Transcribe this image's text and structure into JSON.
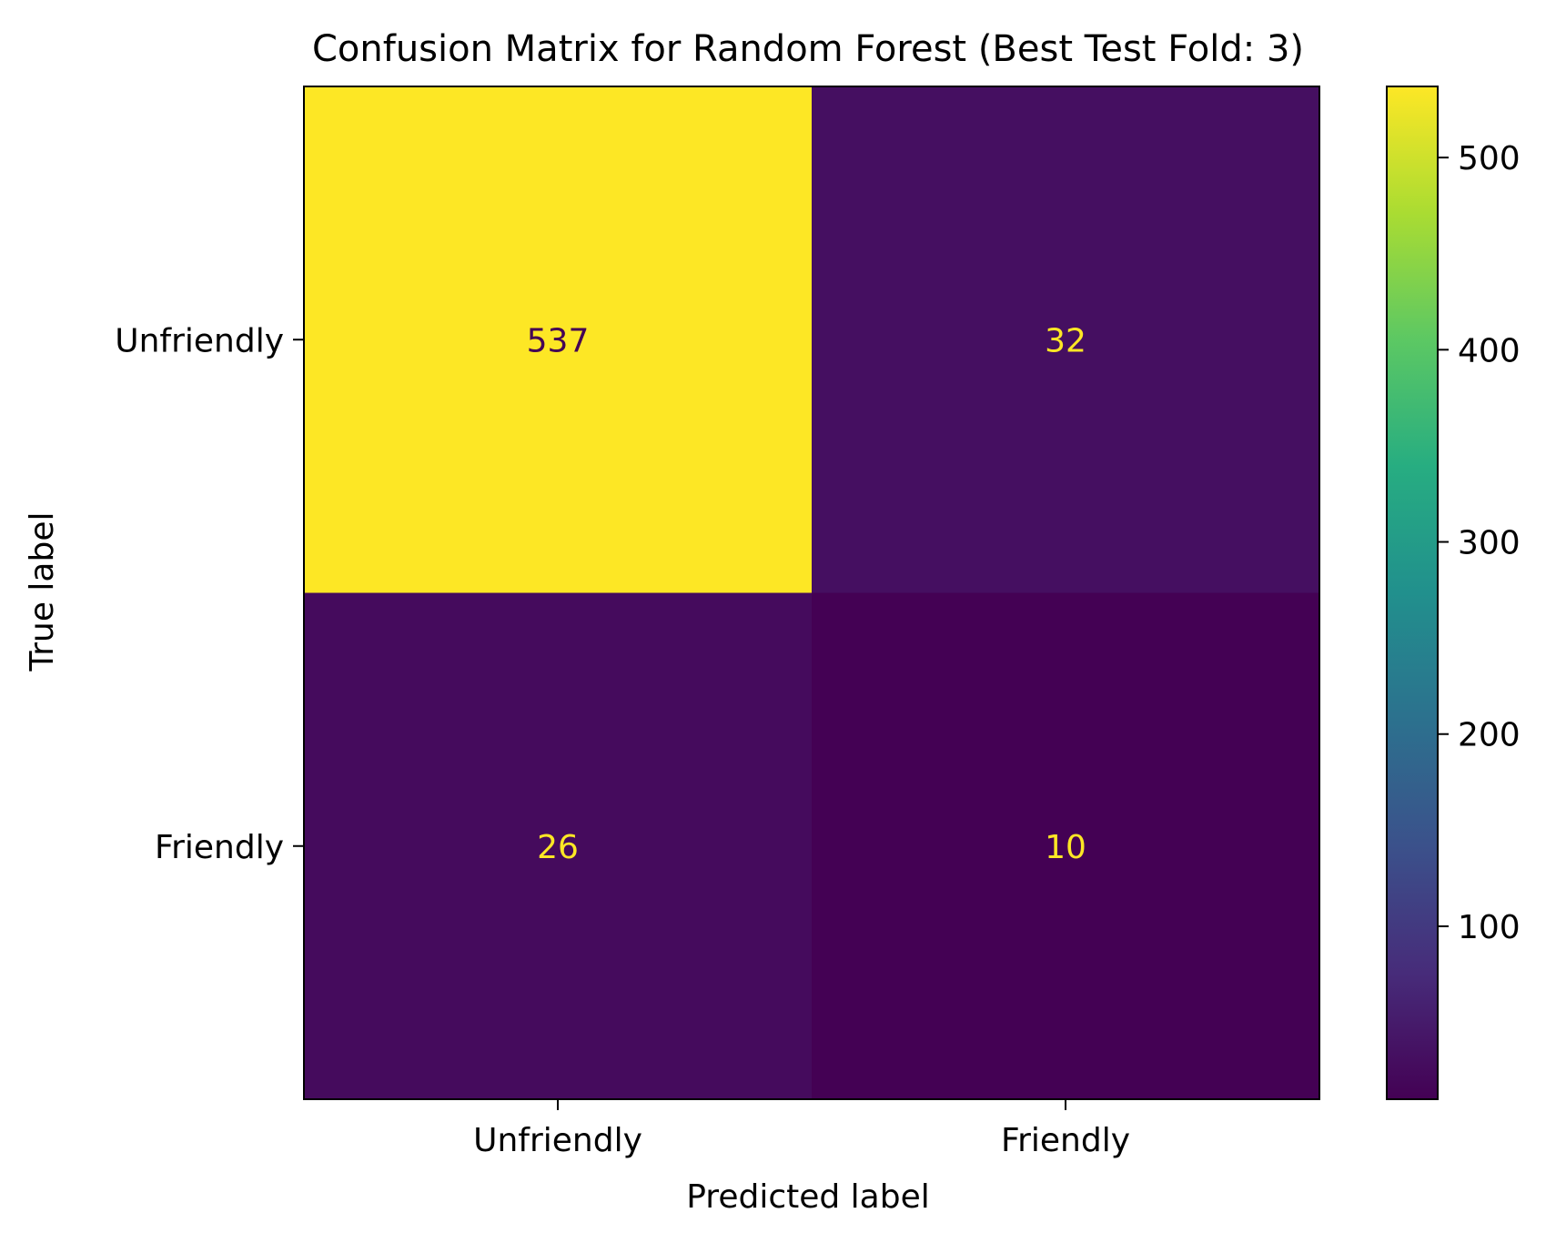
{
  "chart_data": {
    "type": "heatmap",
    "title": "Confusion Matrix for Random Forest (Best Test Fold: 3)",
    "xlabel": "Predicted label",
    "ylabel": "True label",
    "x_categories": [
      "Unfriendly",
      "Friendly"
    ],
    "y_categories": [
      "Unfriendly",
      "Friendly"
    ],
    "matrix": [
      [
        537,
        32
      ],
      [
        26,
        10
      ]
    ],
    "colormap": "viridis",
    "colorbar": {
      "ticks": [
        100,
        200,
        300,
        400,
        500
      ],
      "range": [
        10,
        537
      ]
    },
    "grid": false
  }
}
